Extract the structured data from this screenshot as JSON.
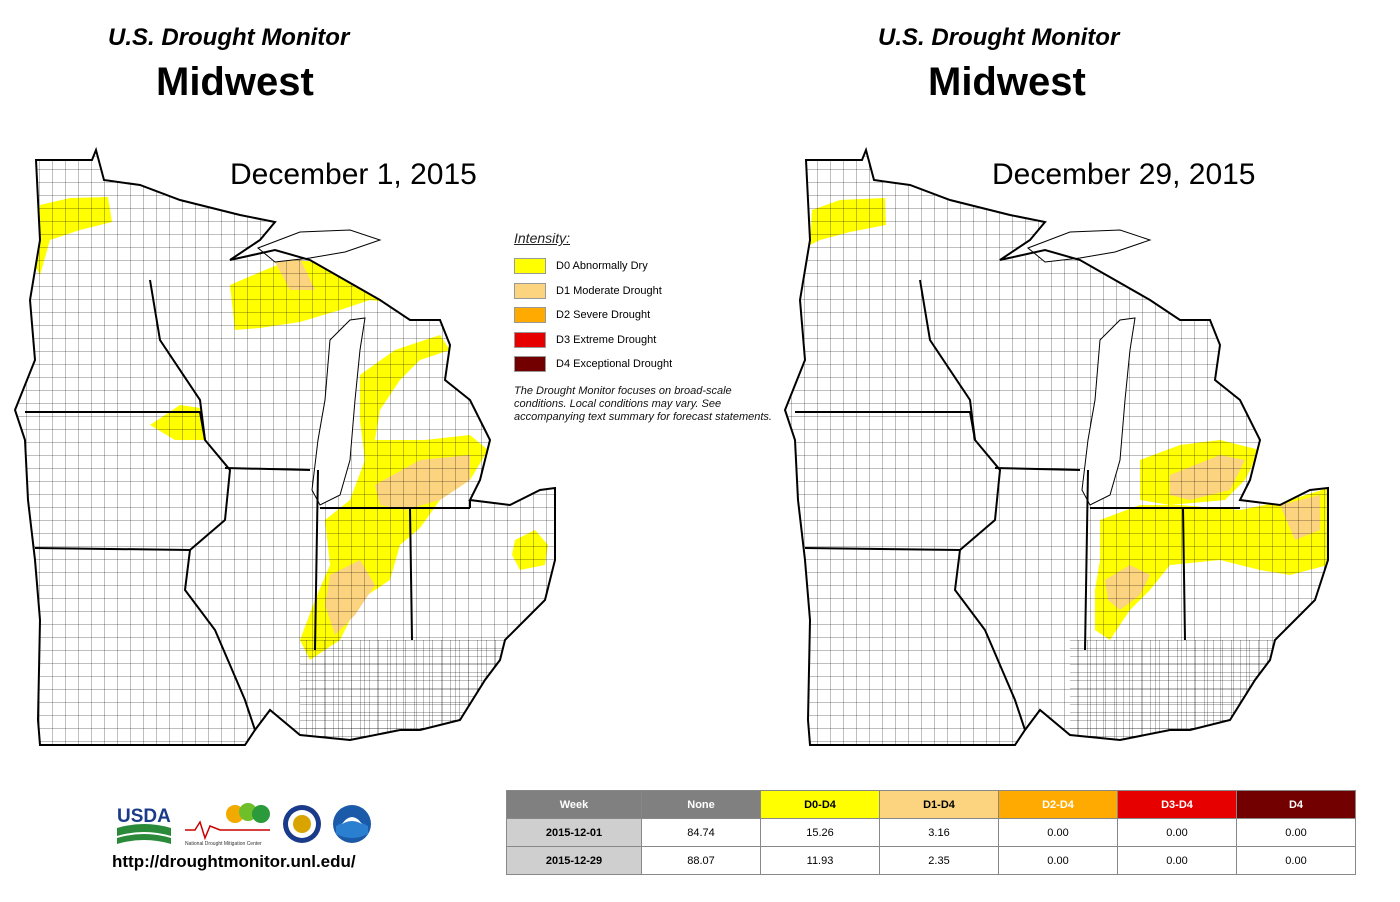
{
  "panels": [
    {
      "subtitle": "U.S. Drought Monitor",
      "title": "Midwest",
      "date": "December 1, 2015"
    },
    {
      "subtitle": "U.S. Drought Monitor",
      "title": "Midwest",
      "date": "December 29, 2015"
    }
  ],
  "legend": {
    "title": "Intensity:",
    "items": [
      {
        "label": "D0 Abnormally Dry",
        "color": "#ffff00"
      },
      {
        "label": "D1 Moderate Drought",
        "color": "#fcd37f"
      },
      {
        "label": "D2 Severe Drought",
        "color": "#ffaa00"
      },
      {
        "label": "D3 Extreme Drought",
        "color": "#e60000"
      },
      {
        "label": "D4 Exceptional Drought",
        "color": "#730000"
      }
    ],
    "note": "The Drought Monitor focuses on broad-scale conditions. Local conditions may vary. See accompanying text summary for forecast statements."
  },
  "footer": {
    "url": "http://droughtmonitor.unl.edu/",
    "logos": {
      "usda": "USDA",
      "ndmc": "National Drought Mitigation Center"
    }
  },
  "table": {
    "headers": [
      "Week",
      "None",
      "D0-D4",
      "D1-D4",
      "D2-D4",
      "D3-D4",
      "D4"
    ],
    "header_colors": [
      "#808080",
      "#808080",
      "#ffff00",
      "#fcd37f",
      "#ffaa00",
      "#e60000",
      "#730000"
    ],
    "header_text_colors": [
      "#ffffff",
      "#ffffff",
      "#000000",
      "#000000",
      "#ffffff",
      "#ffffff",
      "#ffffff"
    ],
    "rows": [
      [
        "2015-12-01",
        "84.74",
        "15.26",
        "3.16",
        "0.00",
        "0.00",
        "0.00"
      ],
      [
        "2015-12-29",
        "88.07",
        "11.93",
        "2.35",
        "0.00",
        "0.00",
        "0.00"
      ]
    ]
  },
  "colors": {
    "d0": "#ffff00",
    "d1": "#fcd37f",
    "background": "#ffffff",
    "border": "#000000"
  }
}
